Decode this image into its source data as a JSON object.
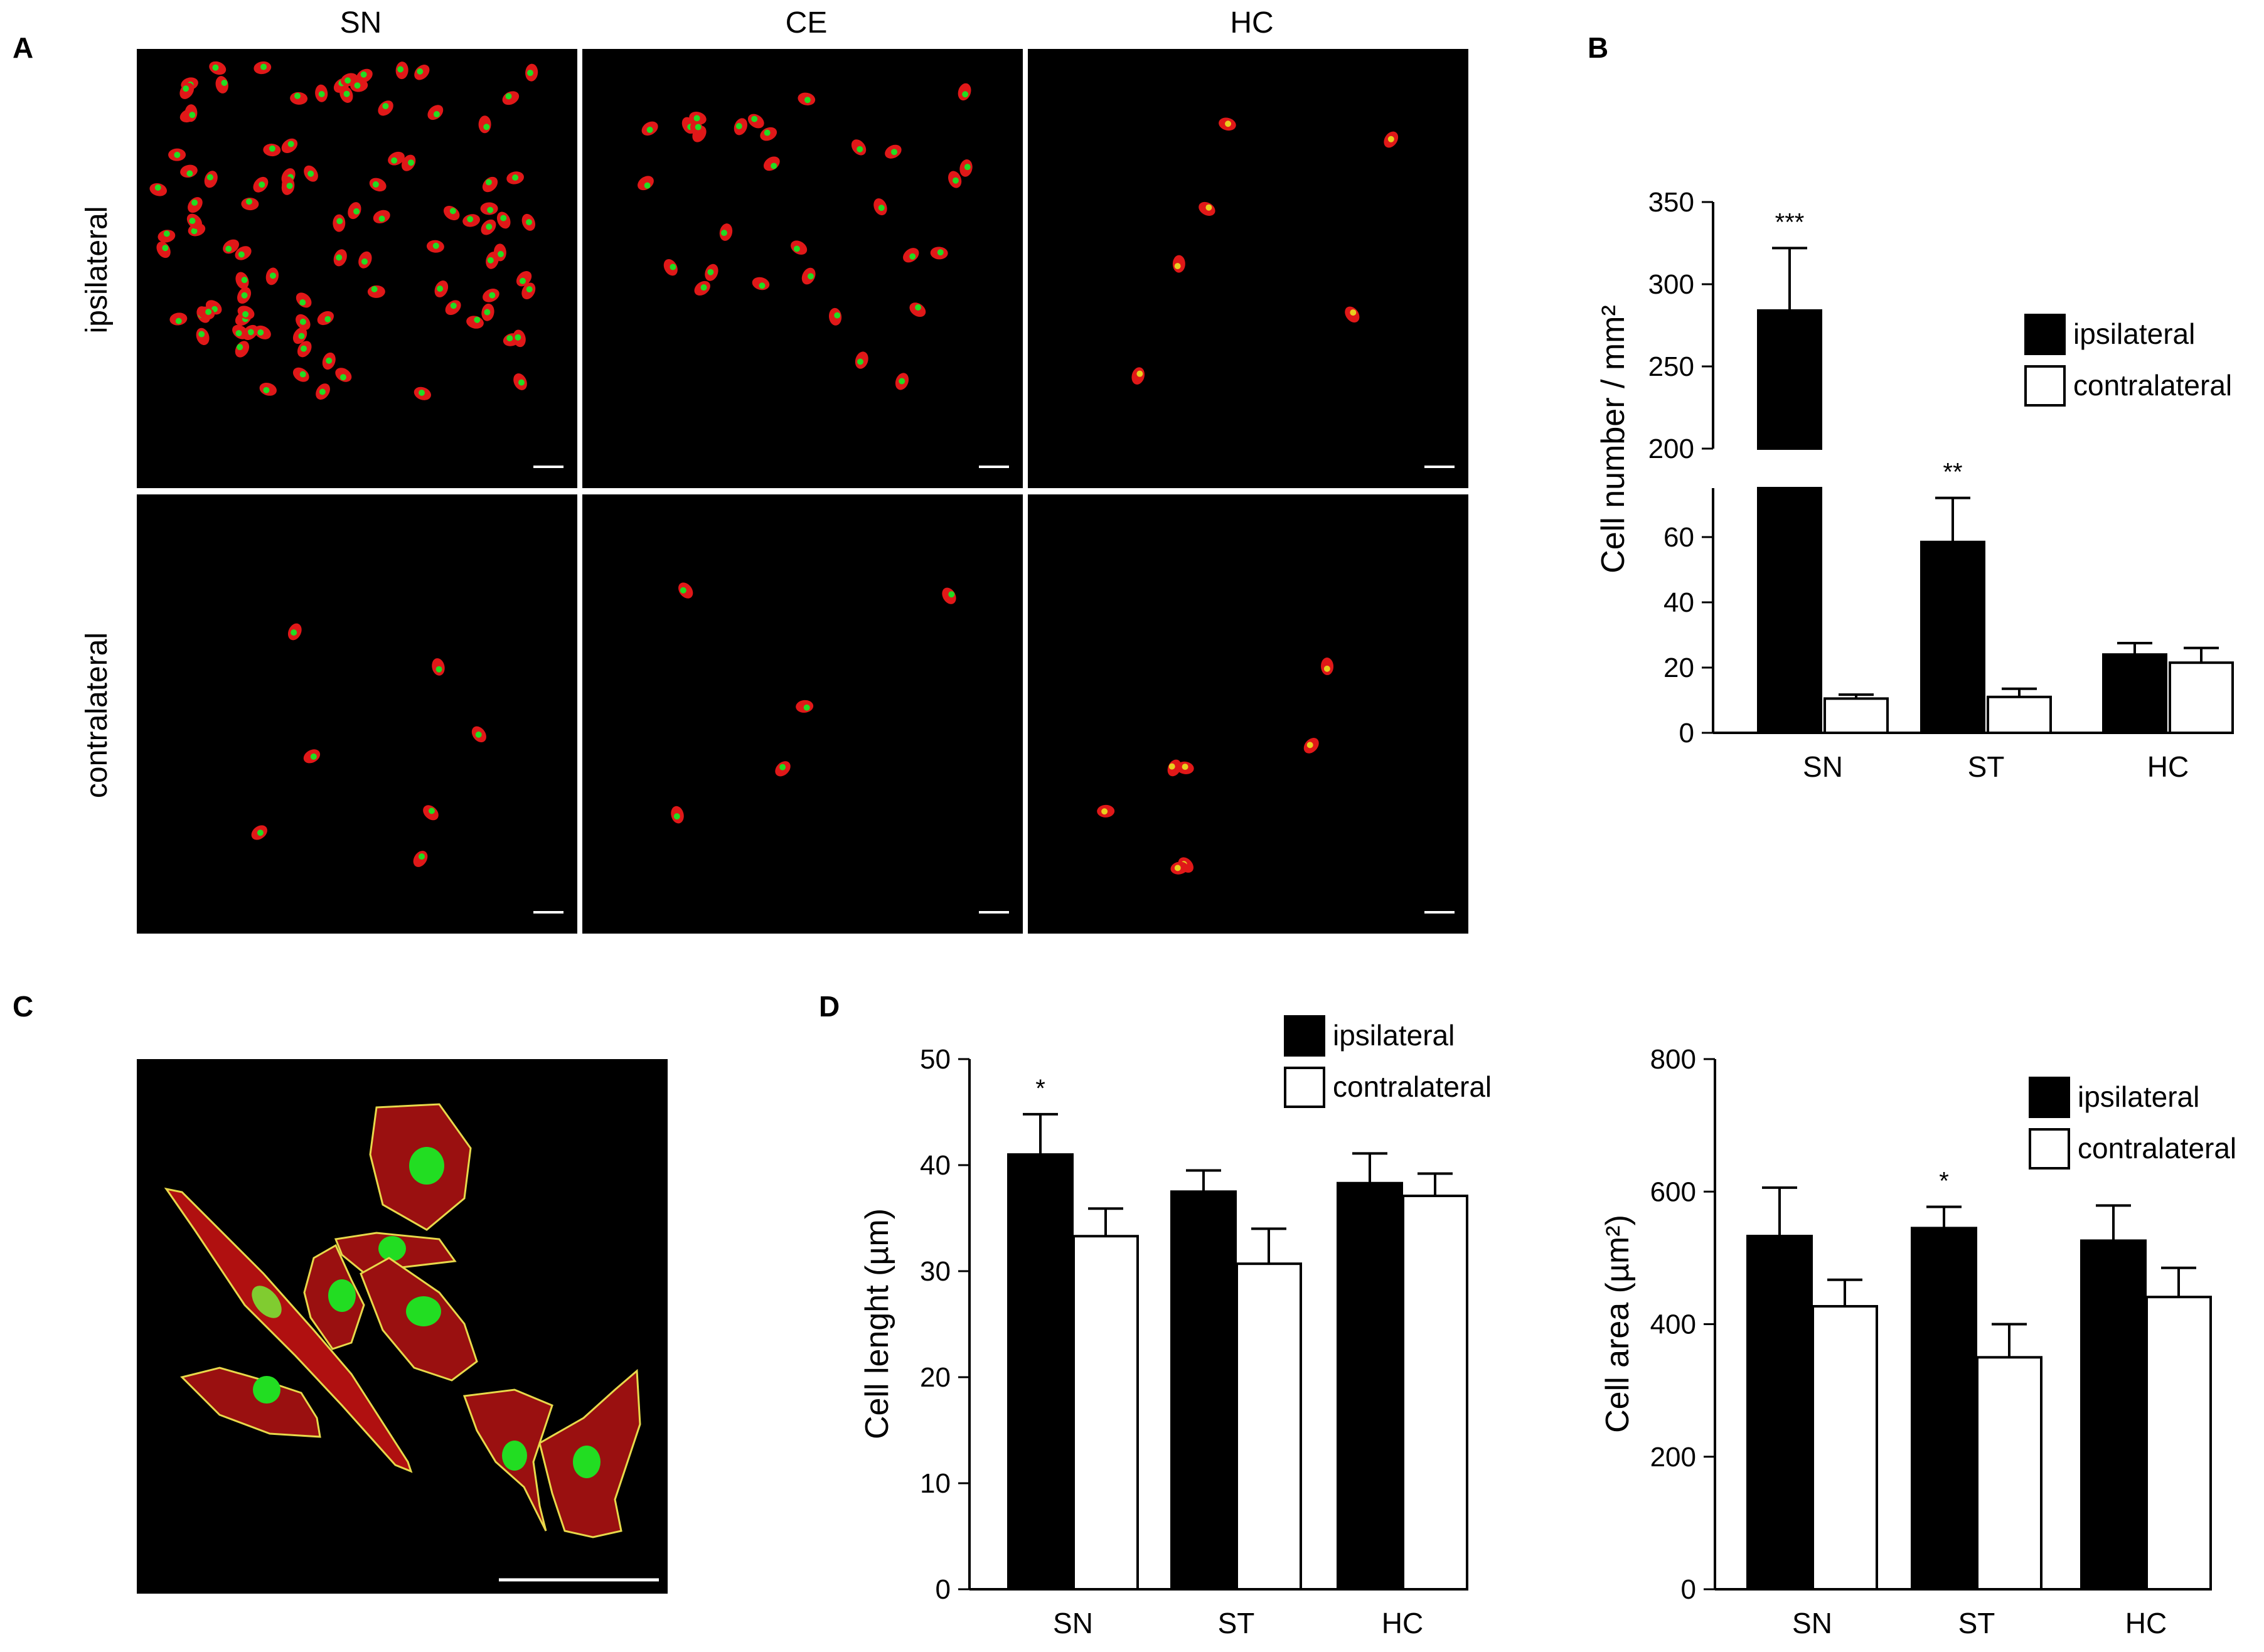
{
  "panels": {
    "A": "A",
    "B": "B",
    "C": "C",
    "D": "D"
  },
  "micrographs": {
    "columns": [
      "SN",
      "CE",
      "HC"
    ],
    "rows": [
      "ipsilateral",
      "contralateral"
    ]
  },
  "colors": {
    "ipsilateral": "#000000",
    "contralateral": "#ffffff",
    "image_bg": "#000000",
    "cell_red": "#e01818",
    "nucleus_green": "#22dd22",
    "outline_yellow": "#e8d84a"
  },
  "chart_data": [
    {
      "id": "B",
      "type": "bar",
      "categories": [
        "SN",
        "ST",
        "HC"
      ],
      "ylabel": "Cell number / mm²",
      "y_break": true,
      "ylim_lower": [
        0,
        75
      ],
      "ylim_upper": [
        200,
        350
      ],
      "yticks_lower": [
        "0",
        "20",
        "40",
        "60"
      ],
      "yticks_upper": [
        "200",
        "250",
        "300",
        "350"
      ],
      "legend": [
        "ipsilateral",
        "contralateral"
      ],
      "legend_position": "right",
      "series": [
        {
          "name": "ipsilateral",
          "values": [
            284,
            58.5,
            24
          ],
          "errors": [
            38,
            13.5,
            3.5
          ]
        },
        {
          "name": "contralateral",
          "values": [
            10.5,
            11,
            21.5
          ],
          "errors": [
            1.2,
            2.5,
            4.5
          ]
        }
      ],
      "annotations": [
        {
          "category": "SN",
          "series": "ipsilateral",
          "text": "***"
        },
        {
          "category": "ST",
          "series": "ipsilateral",
          "text": "**"
        }
      ]
    },
    {
      "id": "D-length",
      "type": "bar",
      "categories": [
        "SN",
        "ST",
        "HC"
      ],
      "ylabel": "Cell lenght (µm)",
      "ylim": [
        0,
        50
      ],
      "yticks": [
        "0",
        "10",
        "20",
        "30",
        "40",
        "50"
      ],
      "legend": [
        "ipsilateral",
        "contralateral"
      ],
      "legend_position": "top-right",
      "series": [
        {
          "name": "ipsilateral",
          "values": [
            41,
            37.5,
            38.3
          ],
          "errors": [
            3.8,
            2,
            2.8
          ]
        },
        {
          "name": "contralateral",
          "values": [
            33.3,
            30.7,
            37.1
          ],
          "errors": [
            2.6,
            3.3,
            2.1
          ]
        }
      ],
      "annotations": [
        {
          "category": "SN",
          "series": "ipsilateral",
          "text": "*"
        }
      ]
    },
    {
      "id": "D-area",
      "type": "bar",
      "categories": [
        "SN",
        "ST",
        "HC"
      ],
      "ylabel": "Cell area (µm²)",
      "ylim": [
        0,
        800
      ],
      "yticks": [
        "0",
        "200",
        "400",
        "600",
        "800"
      ],
      "legend": [
        "ipsilateral",
        "contralateral"
      ],
      "legend_position": "top-right",
      "series": [
        {
          "name": "ipsilateral",
          "values": [
            533,
            545,
            526
          ],
          "errors": [
            73,
            32,
            53
          ]
        },
        {
          "name": "contralateral",
          "values": [
            427,
            350,
            441
          ],
          "errors": [
            40,
            50,
            44
          ]
        }
      ],
      "annotations": [
        {
          "category": "ST",
          "series": "ipsilateral",
          "text": "*"
        }
      ]
    }
  ]
}
